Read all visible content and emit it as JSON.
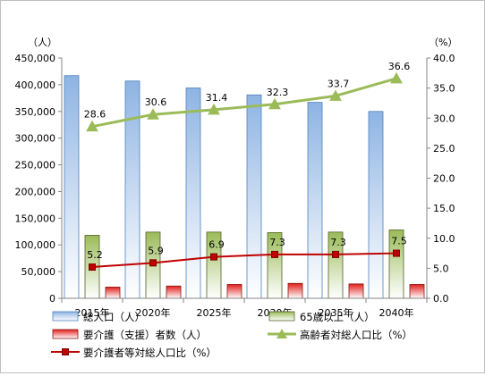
{
  "chart_data": {
    "type": "bar",
    "categories": [
      "2015年",
      "2020年",
      "2025年",
      "2030年",
      "2035年",
      "2040年"
    ],
    "y_left": {
      "unit_label": "（人）",
      "range": [
        0,
        450000
      ],
      "ticks": [
        "0",
        "50,000",
        "100,000",
        "150,000",
        "200,000",
        "250,000",
        "300,000",
        "350,000",
        "400,000",
        "450,000"
      ]
    },
    "y_right": {
      "unit_label": "（%）",
      "range": [
        0,
        40
      ],
      "ticks": [
        "0.0",
        "5.0",
        "10.0",
        "15.0",
        "20.0",
        "25.0",
        "30.0",
        "35.0",
        "40.0"
      ]
    },
    "series": [
      {
        "name": "総人口（人）",
        "kind": "bar",
        "axis": "left",
        "color": "#4f81bd",
        "values": [
          417000,
          407000,
          394000,
          381000,
          367000,
          350000
        ]
      },
      {
        "name": "65歳以上（人）",
        "kind": "bar",
        "axis": "left",
        "color": "#9bbb59",
        "values": [
          118000,
          124000,
          124000,
          123000,
          124000,
          128000
        ]
      },
      {
        "name": "要介護（支援）者数（人）",
        "kind": "bar",
        "axis": "left",
        "color": "#c0504d",
        "values": [
          21000,
          23000,
          26000,
          28000,
          27000,
          26000
        ]
      },
      {
        "name": "高齢者対総人口比（%）",
        "kind": "line",
        "axis": "right",
        "color": "#9bbb59",
        "marker": "triangle",
        "values": [
          28.6,
          30.6,
          31.4,
          32.3,
          33.7,
          36.6
        ],
        "labels": [
          "28.6",
          "30.6",
          "31.4",
          "32.3",
          "33.7",
          "36.6"
        ]
      },
      {
        "name": "要介護者等対総人口比（%）",
        "kind": "line",
        "axis": "right",
        "color": "#c00000",
        "marker": "square",
        "values": [
          5.2,
          5.9,
          6.9,
          7.3,
          7.3,
          7.5
        ],
        "labels": [
          "5.2",
          "5.9",
          "6.9",
          "7.3",
          "7.3",
          "7.5"
        ]
      }
    ],
    "grid": false,
    "legend_position": "bottom"
  }
}
